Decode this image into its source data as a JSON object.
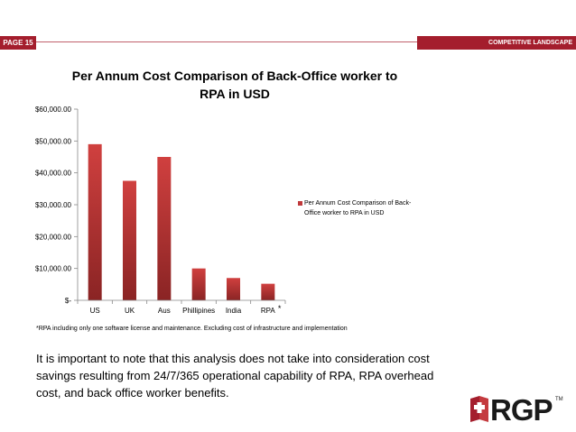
{
  "header": {
    "page_label": "PAGE 15",
    "section_label": "COMPETITIVE LANDSCAPE"
  },
  "colors": {
    "accent": "#a41e2d",
    "bar": "#c0393b",
    "bar_dark": "#7a1f22"
  },
  "chart_data": {
    "type": "bar",
    "title": "Per Annum Cost Comparison of Back-Office worker to RPA in USD",
    "title_line1": "Per Annum Cost Comparison of Back-Office worker to",
    "title_line2": "RPA in USD",
    "categories": [
      "US",
      "UK",
      "Aus",
      "Phillipines",
      "India",
      "RPA"
    ],
    "series": [
      {
        "name": "Per Annum Cost Comparison of Back-Office worker to RPA in USD",
        "values": [
          49000,
          37500,
          45000,
          10000,
          7000,
          5200
        ]
      }
    ],
    "ylim": [
      0,
      60000
    ],
    "y_ticks": [
      0,
      10000,
      20000,
      30000,
      40000,
      50000,
      60000
    ],
    "y_tick_labels": [
      "$-",
      "$10,000.00",
      "$20,000.00",
      "$30,000.00",
      "$40,000.00",
      "$50,000.00",
      "$60,000.00"
    ],
    "legend_position": "right",
    "annotation": "*",
    "grid": false
  },
  "legend": {
    "line1": "Per Annum Cost Comparison of Back-",
    "line2": "Office worker to RPA in USD"
  },
  "footnote": "*RPA including only one software license and maintenance. Excluding cost of infrastructure and implementation",
  "note": "It is important to note that this analysis does not take into consideration cost savings resulting from 24/7/365 operational capability of RPA, RPA overhead cost, and back office worker benefits.",
  "logo": {
    "text": "RGP",
    "tm": "TM",
    "icon": "rgp-logo-icon"
  }
}
